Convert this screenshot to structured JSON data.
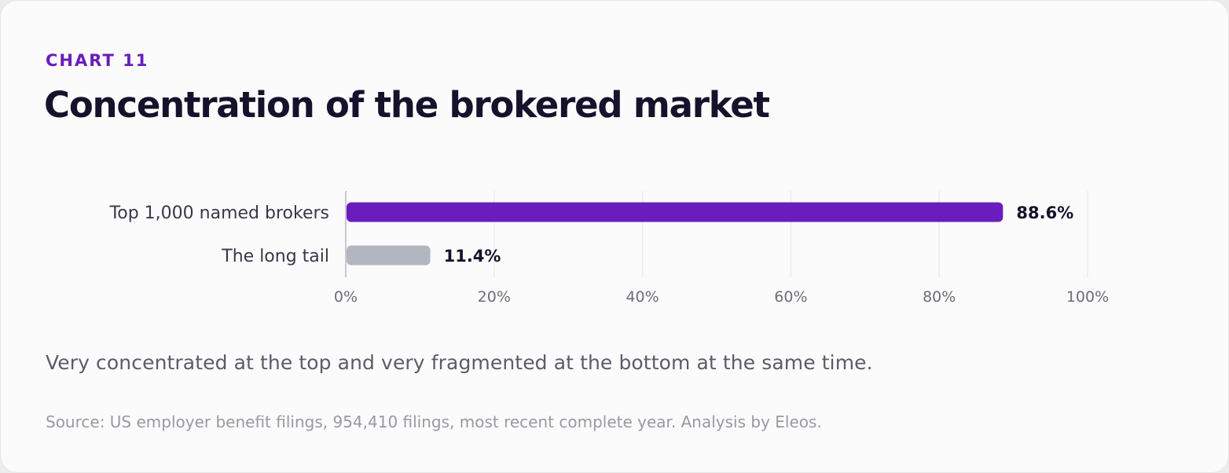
{
  "card": {
    "eyebrow": "CHART 11",
    "title": "Concentration of the brokered market",
    "caption": "Very concentrated at the top and very fragmented at the bottom at the same time.",
    "source": "Source: US employer benefit filings, 954,410 filings, most recent complete year. Analysis by Eleos."
  },
  "chart_data": {
    "type": "bar",
    "orientation": "horizontal",
    "categories": [
      "Top 1,000 named brokers",
      "The long tail"
    ],
    "values": [
      88.6,
      11.4
    ],
    "value_labels": [
      "88.6%",
      "11.4%"
    ],
    "colors": [
      "#6a1cbc",
      "#b2b6c0"
    ],
    "xlim": [
      0,
      100
    ],
    "xticks": [
      0,
      20,
      40,
      60,
      80,
      100
    ],
    "xtick_labels": [
      "0%",
      "20%",
      "40%",
      "60%",
      "80%",
      "100%"
    ],
    "grid": true,
    "title": "",
    "xlabel": "",
    "ylabel": ""
  }
}
